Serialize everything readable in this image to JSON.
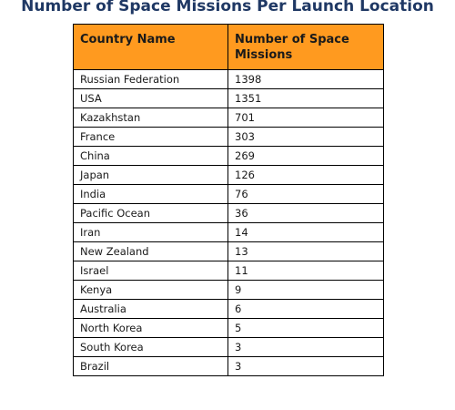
{
  "chart_data": {
    "type": "table",
    "title": "Number of Space Missions Per Launch Location",
    "columns": [
      "Country Name",
      "Number of Space Missions"
    ],
    "rows": [
      [
        "Russian Federation",
        "1398"
      ],
      [
        "USA",
        "1351"
      ],
      [
        "Kazakhstan",
        "701"
      ],
      [
        "France",
        "303"
      ],
      [
        "China",
        "269"
      ],
      [
        "Japan",
        "126"
      ],
      [
        "India",
        "76"
      ],
      [
        "Pacific Ocean",
        "36"
      ],
      [
        "Iran",
        "14"
      ],
      [
        "New Zealand",
        "13"
      ],
      [
        "Israel",
        "11"
      ],
      [
        "Kenya",
        "9"
      ],
      [
        "Australia",
        "6"
      ],
      [
        "North Korea",
        "5"
      ],
      [
        "South Korea",
        "3"
      ],
      [
        "Brazil",
        "3"
      ]
    ]
  },
  "colors": {
    "title": "#1f3864",
    "header_background": "#ff9a1f",
    "border": "#000000"
  }
}
